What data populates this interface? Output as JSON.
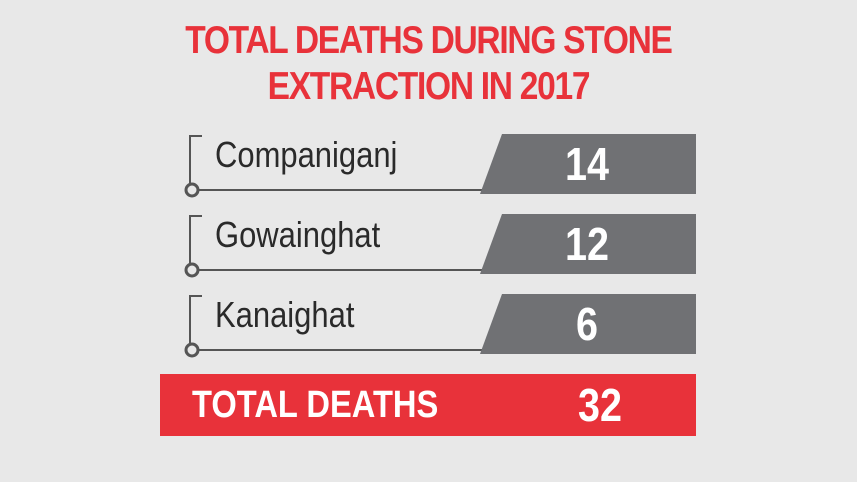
{
  "chart_data": {
    "type": "table",
    "title_lines": [
      "TOTAL DEATHS DURING STONE",
      "EXTRACTION IN 2017"
    ],
    "categories": [
      "Companiganj",
      "Gowainghat",
      "Kanaighat"
    ],
    "values": [
      14,
      12,
      6
    ],
    "total_label": "TOTAL DEATHS",
    "total_value": 32
  },
  "colors": {
    "accent": "#e8323a",
    "value_box": "#707174",
    "leader_line": "#555555",
    "background": "#e8e8e8"
  }
}
